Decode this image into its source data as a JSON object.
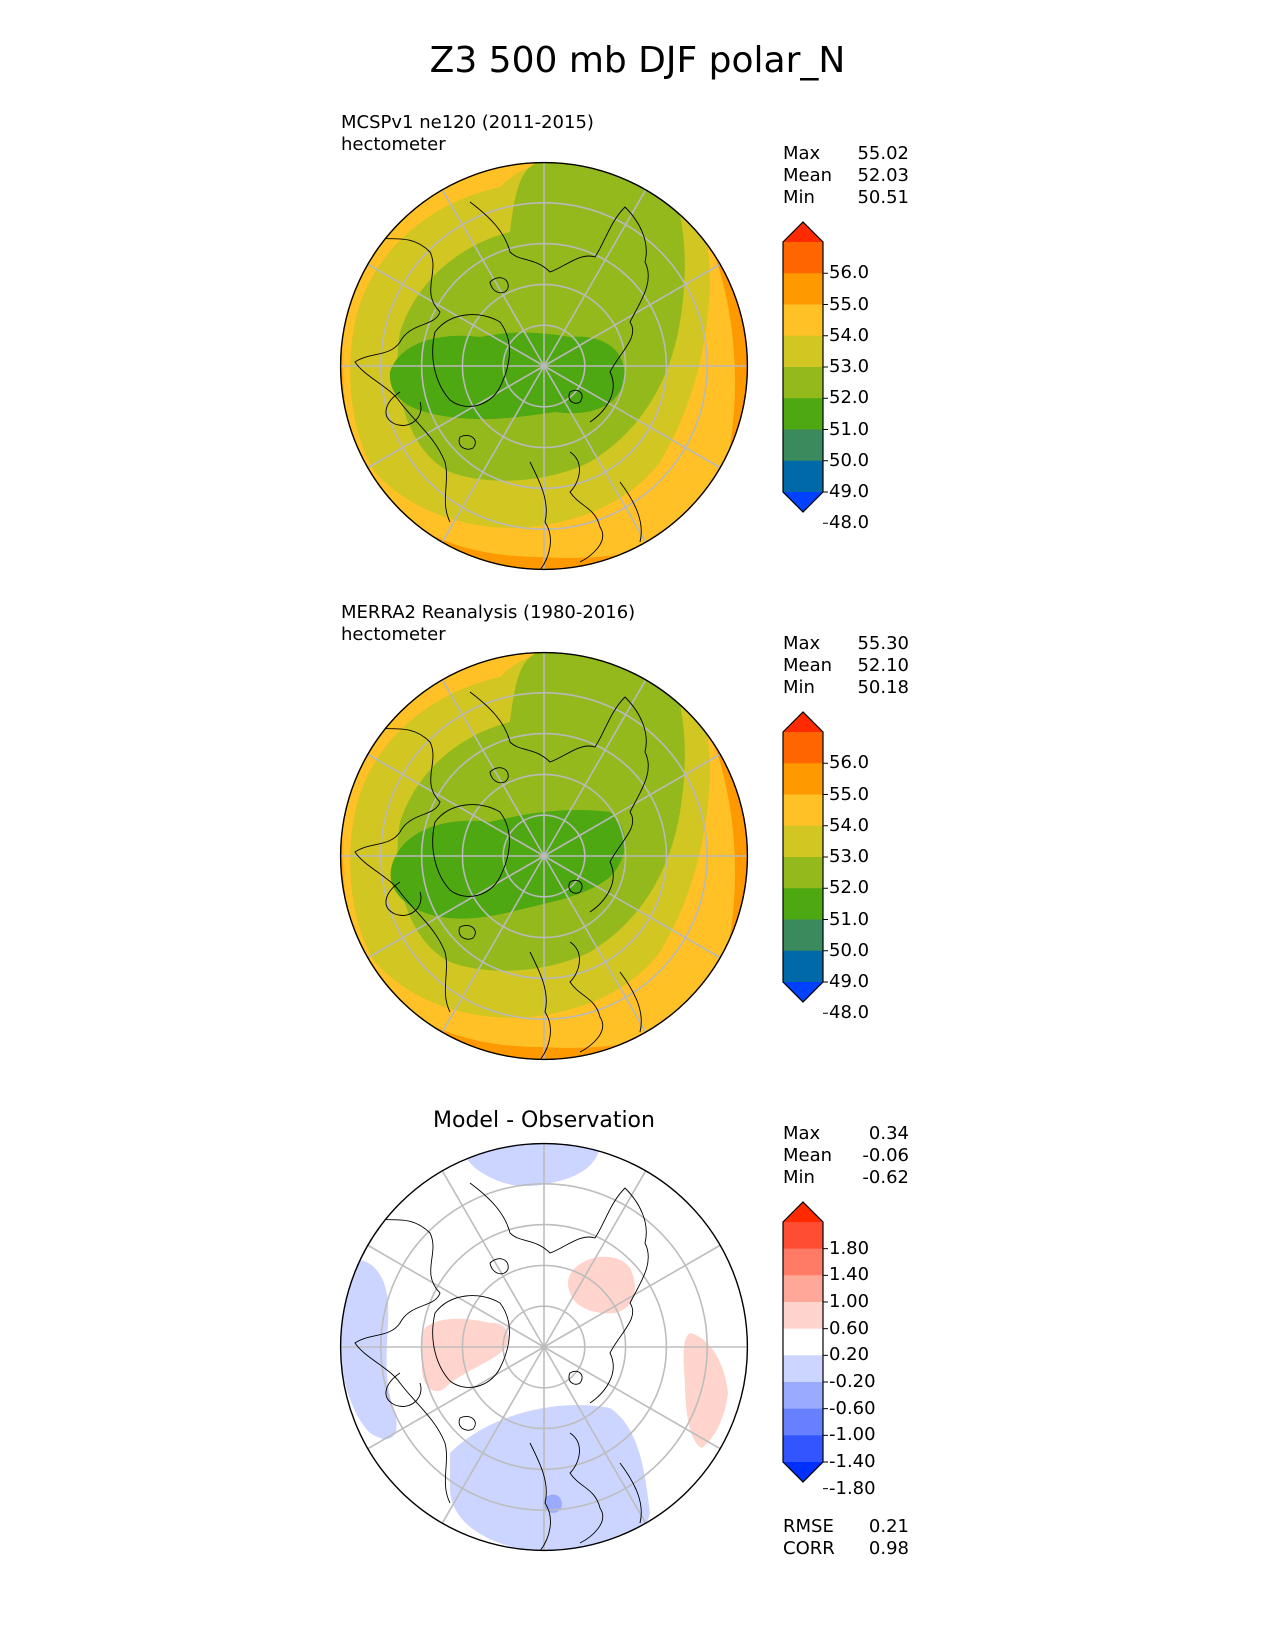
{
  "title": "Z3 500 mb DJF polar_N",
  "panels": [
    {
      "title_line1": "MCSPv1 ne120 (2011-2015)",
      "title_line2": "hectometer",
      "center_title": "",
      "stats": [
        {
          "label": "Max",
          "value": "55.02"
        },
        {
          "label": "Mean",
          "value": "52.03"
        },
        {
          "label": "Min",
          "value": "50.51"
        }
      ],
      "colorbar": {
        "ticks": [
          "56.0",
          "55.0",
          "54.0",
          "53.0",
          "52.0",
          "51.0",
          "50.0",
          "49.0",
          "48.0"
        ],
        "colors": [
          "#ff2a00",
          "#ff6600",
          "#ff9900",
          "#ffc125",
          "#d2c622",
          "#94b91c",
          "#4ea812",
          "#3a8a5e",
          "#006aa8",
          "#0040ff"
        ]
      },
      "field_colors": {
        "ring_outer": "#ff9900",
        "ring_mid": "#ffc125",
        "ring_inner": "#d2c622",
        "body": "#94b91c",
        "core": "#4ea812"
      },
      "footer": []
    },
    {
      "title_line1": "MERRA2 Reanalysis (1980-2016)",
      "title_line2": "hectometer",
      "center_title": "",
      "stats": [
        {
          "label": "Max",
          "value": "55.30"
        },
        {
          "label": "Mean",
          "value": "52.10"
        },
        {
          "label": "Min",
          "value": "50.18"
        }
      ],
      "colorbar": {
        "ticks": [
          "56.0",
          "55.0",
          "54.0",
          "53.0",
          "52.0",
          "51.0",
          "50.0",
          "49.0",
          "48.0"
        ],
        "colors": [
          "#ff2a00",
          "#ff6600",
          "#ff9900",
          "#ffc125",
          "#d2c622",
          "#94b91c",
          "#4ea812",
          "#3a8a5e",
          "#006aa8",
          "#0040ff"
        ]
      },
      "field_colors": {
        "ring_outer": "#ff9900",
        "ring_mid": "#ffc125",
        "ring_inner": "#d2c622",
        "body": "#94b91c",
        "core": "#4ea812"
      },
      "footer": []
    },
    {
      "title_line1": "",
      "title_line2": "",
      "center_title": "Model - Observation",
      "stats": [
        {
          "label": "Max",
          "value": "0.34"
        },
        {
          "label": "Mean",
          "value": "-0.06"
        },
        {
          "label": "Min",
          "value": "-0.62"
        }
      ],
      "colorbar": {
        "ticks": [
          "1.80",
          "1.40",
          "1.00",
          "0.60",
          "0.20",
          "-0.20",
          "-0.60",
          "-1.00",
          "-1.40",
          "-1.80"
        ],
        "colors": [
          "#ff2a00",
          "#ff4d33",
          "#ff7b66",
          "#ffa899",
          "#ffd4cc",
          "#ffffff",
          "#ccd5ff",
          "#99aaff",
          "#6680ff",
          "#3355ff",
          "#0030ff"
        ]
      },
      "field_colors": {
        "positive": "#ffd4cc",
        "negative": "#ccd5ff",
        "negative_strong": "#99aaff"
      },
      "footer": [
        {
          "label": "RMSE",
          "value": "0.21"
        },
        {
          "label": "CORR",
          "value": "0.98"
        }
      ]
    }
  ]
}
